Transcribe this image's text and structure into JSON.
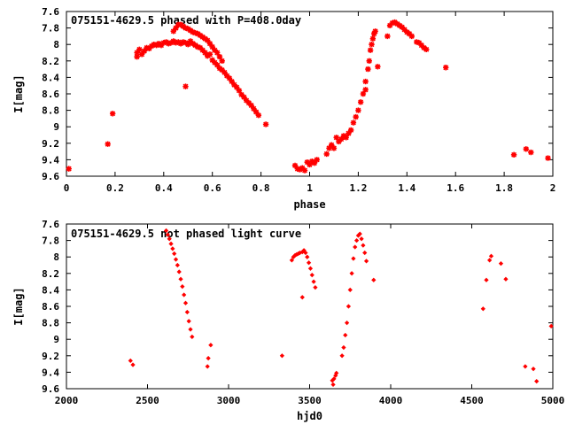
{
  "chart_data": [
    {
      "type": "scatter",
      "title": "075151-4629.5 phased with P=408.0day",
      "xlabel": "phase",
      "ylabel": "I[mag]",
      "xlim": [
        0,
        2
      ],
      "ylim": [
        9.6,
        7.6
      ],
      "y_inverted": true,
      "grid": false,
      "marker": "star",
      "color": "#ff0000",
      "xticks": [
        "0",
        "0.2",
        "0.4",
        "0.6",
        "0.8",
        "1",
        "1.2",
        "1.4",
        "1.6",
        "1.8",
        "2"
      ],
      "yticks": [
        "7.6",
        "7.8",
        "8",
        "8.2",
        "8.4",
        "8.6",
        "8.8",
        "9",
        "9.2",
        "9.4",
        "9.6"
      ],
      "points": [
        [
          0.01,
          9.51
        ],
        [
          0.17,
          9.21
        ],
        [
          0.19,
          8.84
        ],
        [
          0.29,
          8.15
        ],
        [
          0.29,
          8.1
        ],
        [
          0.3,
          8.06
        ],
        [
          0.31,
          8.12
        ],
        [
          0.32,
          8.08
        ],
        [
          0.33,
          8.04
        ],
        [
          0.34,
          8.05
        ],
        [
          0.35,
          8.02
        ],
        [
          0.36,
          8.0
        ],
        [
          0.37,
          8.01
        ],
        [
          0.38,
          7.99
        ],
        [
          0.39,
          8.01
        ],
        [
          0.4,
          7.98
        ],
        [
          0.41,
          7.97
        ],
        [
          0.42,
          7.99
        ],
        [
          0.43,
          7.98
        ],
        [
          0.44,
          7.96
        ],
        [
          0.45,
          7.98
        ],
        [
          0.46,
          7.97
        ],
        [
          0.47,
          7.99
        ],
        [
          0.48,
          7.97
        ],
        [
          0.49,
          7.98
        ],
        [
          0.5,
          8.0
        ],
        [
          0.51,
          7.96
        ],
        [
          0.52,
          7.99
        ],
        [
          0.53,
          8.01
        ],
        [
          0.54,
          8.03
        ],
        [
          0.55,
          8.04
        ],
        [
          0.56,
          8.07
        ],
        [
          0.57,
          8.1
        ],
        [
          0.58,
          8.14
        ],
        [
          0.59,
          8.12
        ],
        [
          0.6,
          8.19
        ],
        [
          0.61,
          8.22
        ],
        [
          0.62,
          8.25
        ],
        [
          0.63,
          8.29
        ],
        [
          0.64,
          8.31
        ],
        [
          0.65,
          8.34
        ],
        [
          0.66,
          8.38
        ],
        [
          0.67,
          8.41
        ],
        [
          0.68,
          8.45
        ],
        [
          0.69,
          8.49
        ],
        [
          0.7,
          8.52
        ],
        [
          0.71,
          8.56
        ],
        [
          0.72,
          8.61
        ],
        [
          0.73,
          8.64
        ],
        [
          0.74,
          8.68
        ],
        [
          0.75,
          8.71
        ],
        [
          0.76,
          8.74
        ],
        [
          0.77,
          8.78
        ],
        [
          0.78,
          8.82
        ],
        [
          0.79,
          8.86
        ],
        [
          0.82,
          8.97
        ],
        [
          0.44,
          7.84
        ],
        [
          0.45,
          7.8
        ],
        [
          0.46,
          7.76
        ],
        [
          0.47,
          7.76
        ],
        [
          0.48,
          7.78
        ],
        [
          0.49,
          7.8
        ],
        [
          0.5,
          7.81
        ],
        [
          0.51,
          7.83
        ],
        [
          0.52,
          7.85
        ],
        [
          0.53,
          7.86
        ],
        [
          0.54,
          7.87
        ],
        [
          0.55,
          7.89
        ],
        [
          0.56,
          7.91
        ],
        [
          0.57,
          7.93
        ],
        [
          0.58,
          7.95
        ],
        [
          0.59,
          7.99
        ],
        [
          0.6,
          8.03
        ],
        [
          0.61,
          8.07
        ],
        [
          0.62,
          8.1
        ],
        [
          0.63,
          8.15
        ],
        [
          0.64,
          8.2
        ],
        [
          0.49,
          8.51
        ],
        [
          0.94,
          9.47
        ],
        [
          0.95,
          9.51
        ],
        [
          0.96,
          9.52
        ],
        [
          0.97,
          9.5
        ],
        [
          0.98,
          9.53
        ],
        [
          0.99,
          9.43
        ],
        [
          1.0,
          9.46
        ],
        [
          1.01,
          9.42
        ],
        [
          1.02,
          9.44
        ],
        [
          1.03,
          9.4
        ],
        [
          1.07,
          9.33
        ],
        [
          1.08,
          9.26
        ],
        [
          1.09,
          9.22
        ],
        [
          1.1,
          9.26
        ],
        [
          1.11,
          9.13
        ],
        [
          1.12,
          9.18
        ],
        [
          1.13,
          9.15
        ],
        [
          1.14,
          9.11
        ],
        [
          1.15,
          9.13
        ],
        [
          1.16,
          9.08
        ],
        [
          1.17,
          9.04
        ],
        [
          1.18,
          8.95
        ],
        [
          1.19,
          8.88
        ],
        [
          1.2,
          8.8
        ],
        [
          1.21,
          8.7
        ],
        [
          1.22,
          8.6
        ],
        [
          1.23,
          8.45
        ],
        [
          1.24,
          8.3
        ],
        [
          1.245,
          8.2
        ],
        [
          1.25,
          8.07
        ],
        [
          1.255,
          8.0
        ],
        [
          1.26,
          7.93
        ],
        [
          1.265,
          7.87
        ],
        [
          1.27,
          7.84
        ],
        [
          1.28,
          8.27
        ],
        [
          1.23,
          8.55
        ],
        [
          1.32,
          7.9
        ],
        [
          1.33,
          7.77
        ],
        [
          1.34,
          7.74
        ],
        [
          1.35,
          7.73
        ],
        [
          1.36,
          7.75
        ],
        [
          1.37,
          7.77
        ],
        [
          1.38,
          7.79
        ],
        [
          1.39,
          7.82
        ],
        [
          1.4,
          7.85
        ],
        [
          1.41,
          7.87
        ],
        [
          1.42,
          7.9
        ],
        [
          1.44,
          7.97
        ],
        [
          1.45,
          7.98
        ],
        [
          1.46,
          8.01
        ],
        [
          1.47,
          8.04
        ],
        [
          1.48,
          8.06
        ],
        [
          1.56,
          8.28
        ],
        [
          1.84,
          9.34
        ],
        [
          1.89,
          9.27
        ],
        [
          1.91,
          9.31
        ],
        [
          1.98,
          9.38
        ]
      ]
    },
    {
      "type": "scatter",
      "title": "075151-4629.5 not phased light curve",
      "xlabel": "hjd0",
      "ylabel": "I[mag]",
      "xlim": [
        2000,
        5000
      ],
      "ylim": [
        9.6,
        7.6
      ],
      "y_inverted": true,
      "grid": false,
      "marker": "diamond",
      "color": "#ff0000",
      "xticks": [
        "2000",
        "2500",
        "3000",
        "3500",
        "4000",
        "4500",
        "5000"
      ],
      "yticks": [
        "7.6",
        "7.8",
        "8",
        "8.2",
        "8.4",
        "8.6",
        "8.8",
        "9",
        "9.2",
        "9.4",
        "9.6"
      ],
      "points": [
        [
          2395,
          9.26
        ],
        [
          2410,
          9.31
        ],
        [
          2615,
          7.68
        ],
        [
          2625,
          7.73
        ],
        [
          2635,
          7.78
        ],
        [
          2645,
          7.84
        ],
        [
          2655,
          7.9
        ],
        [
          2665,
          7.96
        ],
        [
          2675,
          8.03
        ],
        [
          2685,
          8.1
        ],
        [
          2695,
          8.18
        ],
        [
          2705,
          8.27
        ],
        [
          2715,
          8.36
        ],
        [
          2725,
          8.46
        ],
        [
          2735,
          8.56
        ],
        [
          2745,
          8.67
        ],
        [
          2755,
          8.78
        ],
        [
          2765,
          8.88
        ],
        [
          2775,
          8.97
        ],
        [
          2870,
          9.33
        ],
        [
          2875,
          9.23
        ],
        [
          2890,
          9.07
        ],
        [
          3330,
          9.2
        ],
        [
          3390,
          8.04
        ],
        [
          3400,
          8.0
        ],
        [
          3410,
          7.98
        ],
        [
          3420,
          7.97
        ],
        [
          3430,
          7.96
        ],
        [
          3440,
          7.95
        ],
        [
          3455,
          7.94
        ],
        [
          3465,
          7.92
        ],
        [
          3475,
          7.95
        ],
        [
          3485,
          8.0
        ],
        [
          3495,
          8.07
        ],
        [
          3505,
          8.14
        ],
        [
          3515,
          8.22
        ],
        [
          3525,
          8.3
        ],
        [
          3535,
          8.37
        ],
        [
          3455,
          8.49
        ],
        [
          3640,
          9.5
        ],
        [
          3645,
          9.55
        ],
        [
          3650,
          9.48
        ],
        [
          3660,
          9.44
        ],
        [
          3665,
          9.41
        ],
        [
          3700,
          9.2
        ],
        [
          3710,
          9.1
        ],
        [
          3720,
          8.95
        ],
        [
          3730,
          8.8
        ],
        [
          3740,
          8.6
        ],
        [
          3750,
          8.4
        ],
        [
          3760,
          8.2
        ],
        [
          3770,
          8.02
        ],
        [
          3780,
          7.88
        ],
        [
          3790,
          7.8
        ],
        [
          3800,
          7.74
        ],
        [
          3810,
          7.72
        ],
        [
          3820,
          7.78
        ],
        [
          3830,
          7.86
        ],
        [
          3840,
          7.95
        ],
        [
          3850,
          8.05
        ],
        [
          3895,
          8.28
        ],
        [
          4570,
          8.63
        ],
        [
          4590,
          8.28
        ],
        [
          4610,
          8.04
        ],
        [
          4620,
          7.99
        ],
        [
          4680,
          8.08
        ],
        [
          4710,
          8.27
        ],
        [
          4830,
          9.33
        ],
        [
          4880,
          9.36
        ],
        [
          4900,
          9.51
        ],
        [
          4990,
          8.84
        ]
      ]
    }
  ]
}
